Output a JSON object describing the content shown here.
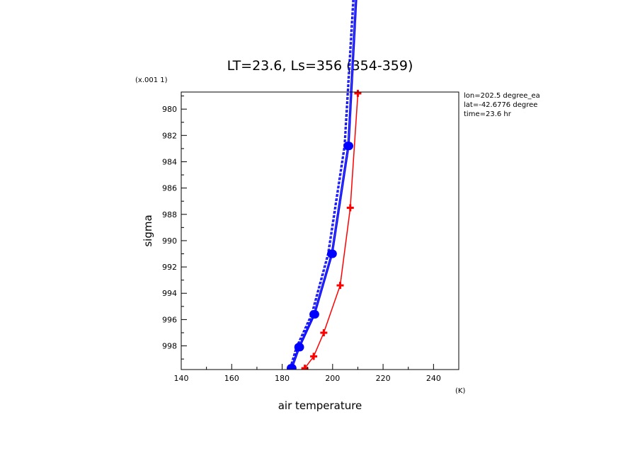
{
  "chart_data": {
    "type": "line",
    "title": "LT=23.6, Ls=356 (354-359)",
    "xlabel": "air temperature",
    "xunit": "(K)",
    "ylabel": "sigma",
    "yscale_label": "(x.001 1)",
    "xlim": [
      140,
      250
    ],
    "ylim": [
      999.8,
      978.7
    ],
    "y_inverted": true,
    "xticks": [
      140,
      160,
      180,
      200,
      220,
      240
    ],
    "yticks": [
      980,
      982,
      984,
      986,
      988,
      990,
      992,
      994,
      996,
      998
    ],
    "info": [
      "lon=202.5 degree_ea",
      "lat=-42.6776 degree",
      "time=23.6 hr"
    ],
    "series": [
      {
        "color": "#0000ff",
        "style": "solid",
        "marker": "circle",
        "points": [
          [
            183.5,
            999.7
          ],
          [
            186.5,
            998.1
          ],
          [
            192.5,
            995.6
          ],
          [
            199.5,
            991.0
          ],
          [
            206.0,
            982.8
          ],
          [
            209.5,
            970.0
          ]
        ]
      },
      {
        "color": "#0000ff",
        "style": "solid",
        "marker": "circle",
        "points": [
          [
            184.0,
            999.7
          ],
          [
            187.0,
            998.1
          ],
          [
            193.0,
            995.6
          ],
          [
            200.0,
            991.0
          ],
          [
            206.5,
            982.8
          ],
          [
            210.0,
            970.0
          ]
        ]
      },
      {
        "color": "#0000ff",
        "style": "dashed",
        "marker": "none",
        "points": [
          [
            183.0,
            999.7
          ],
          [
            185.5,
            998.1
          ],
          [
            191.5,
            995.6
          ],
          [
            198.0,
            991.0
          ],
          [
            204.5,
            982.8
          ],
          [
            208.5,
            970.0
          ]
        ]
      },
      {
        "color": "#0000ff",
        "style": "dashed",
        "marker": "none",
        "points": [
          [
            183.5,
            999.7
          ],
          [
            186.0,
            998.1
          ],
          [
            192.0,
            995.6
          ],
          [
            198.5,
            991.0
          ],
          [
            205.0,
            982.8
          ],
          [
            209.0,
            970.0
          ]
        ]
      },
      {
        "color": "#ff0000",
        "style": "solid",
        "marker": "plus",
        "points": [
          [
            189.0,
            999.7
          ],
          [
            192.5,
            998.8
          ],
          [
            196.5,
            997.0
          ],
          [
            203.0,
            993.4
          ],
          [
            207.0,
            987.5
          ],
          [
            210.0,
            978.8
          ]
        ]
      }
    ]
  }
}
